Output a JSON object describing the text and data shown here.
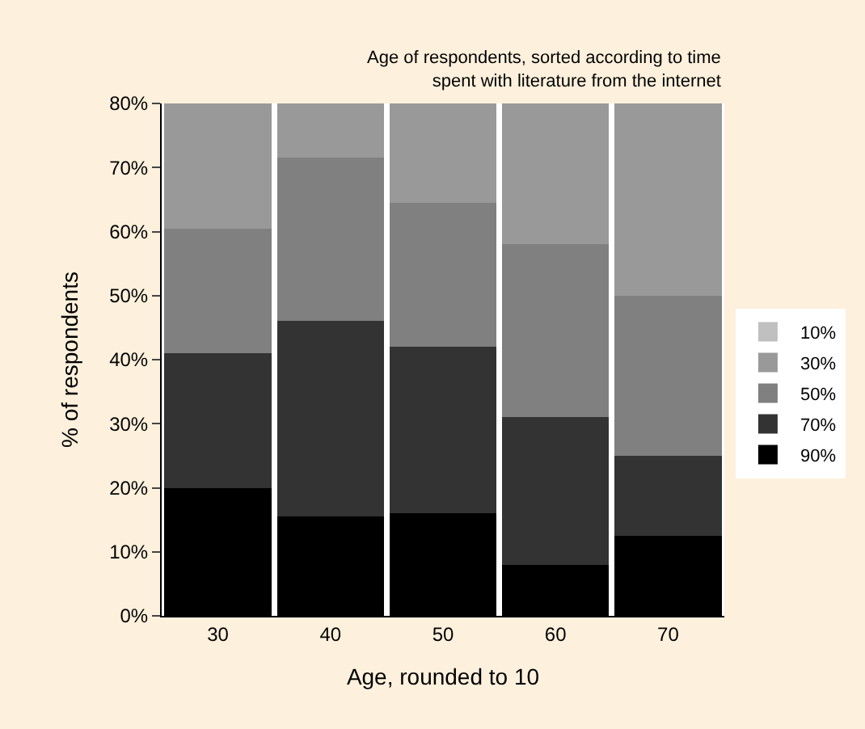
{
  "chart_data": {
    "type": "bar",
    "stacked": true,
    "title": "Age of respondents, sorted according to time spent with literature from the internet",
    "xlabel": "Age, rounded to 10",
    "ylabel": "% of respondents",
    "categories": [
      "30",
      "40",
      "50",
      "60",
      "70"
    ],
    "series": [
      {
        "name": "90%",
        "color": "#000000",
        "values": [
          20,
          15.5,
          16,
          8,
          12.5
        ]
      },
      {
        "name": "70%",
        "color": "#333333",
        "values": [
          21,
          30.5,
          26,
          23,
          12.5
        ]
      },
      {
        "name": "50%",
        "color": "#808080",
        "values": [
          19.5,
          25.5,
          22.5,
          27,
          25
        ]
      },
      {
        "name": "30%",
        "color": "#999999",
        "values": [
          19.5,
          8.5,
          15.5,
          22,
          30
        ]
      },
      {
        "name": "10%",
        "color": "#c0c0c0",
        "values": [
          0,
          0,
          0,
          0,
          0
        ]
      }
    ],
    "ylim": [
      0,
      80
    ],
    "yticks": [
      {
        "value": 0,
        "label": "0%"
      },
      {
        "value": 10,
        "label": "10%"
      },
      {
        "value": 20,
        "label": "20%"
      },
      {
        "value": 30,
        "label": "30%"
      },
      {
        "value": 40,
        "label": "40%"
      },
      {
        "value": 50,
        "label": "50%"
      },
      {
        "value": 60,
        "label": "60%"
      },
      {
        "value": 70,
        "label": "70%"
      },
      {
        "value": 80,
        "label": "80%"
      }
    ],
    "legend": "right"
  }
}
